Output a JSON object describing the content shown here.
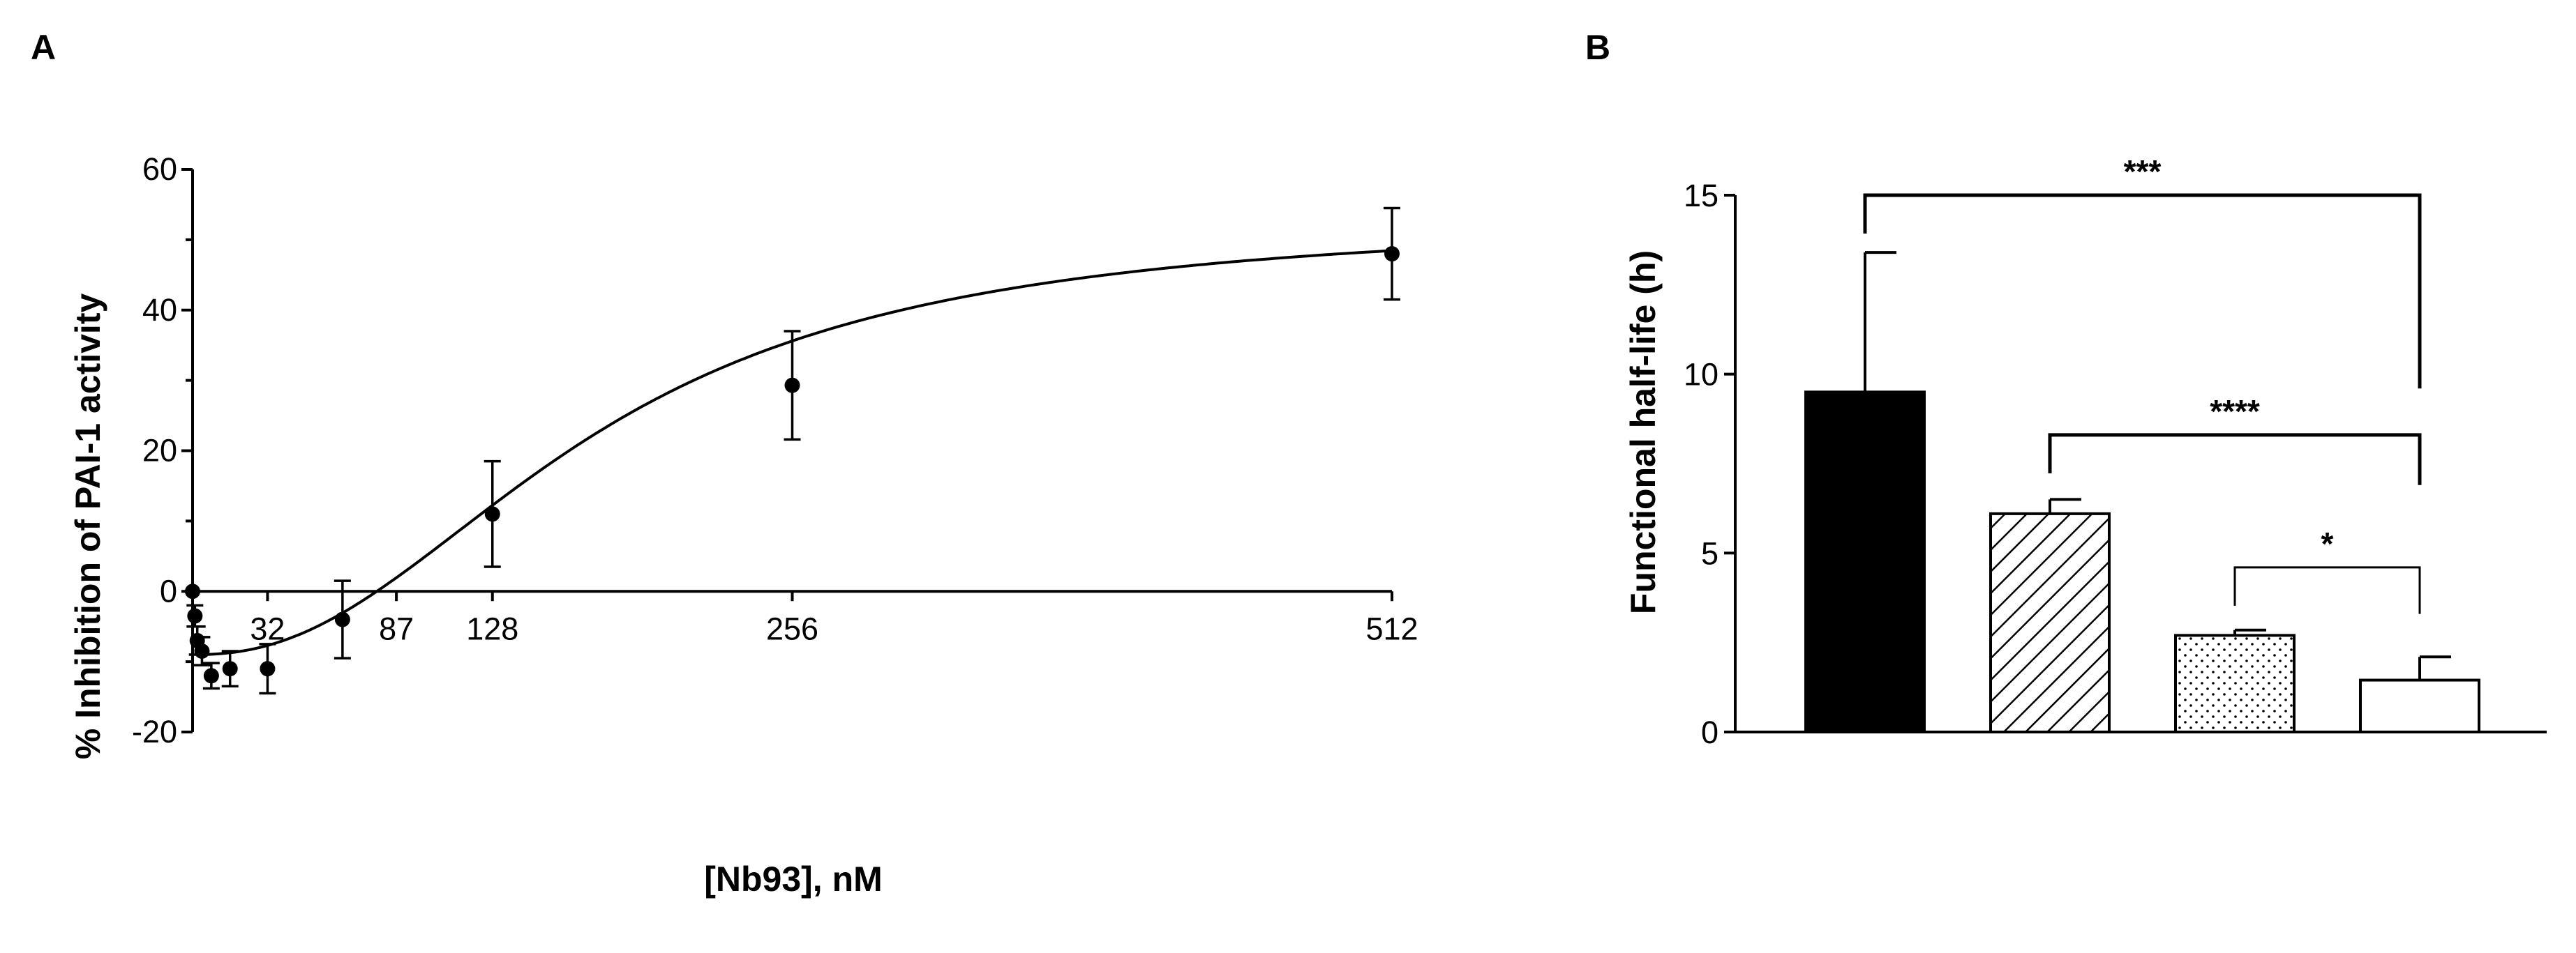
{
  "panels": {
    "a": {
      "letter": "A"
    },
    "b": {
      "letter": "B"
    }
  },
  "chart_data": [
    {
      "type": "scatter",
      "xlabel": "[Nb93], nM",
      "ylabel": "% Inhibition of PAI-1 activity",
      "xlim": [
        0,
        512
      ],
      "ylim": [
        -20,
        60
      ],
      "yticks": [
        -20,
        0,
        20,
        40,
        60
      ],
      "xticks": [
        32,
        87,
        128,
        256,
        512
      ],
      "grid": false,
      "legend": "none",
      "points": [
        {
          "x": 0,
          "y": 0,
          "err": 0
        },
        {
          "x": 1,
          "y": -3.5,
          "err": 1.5
        },
        {
          "x": 2,
          "y": -7,
          "err": 2.0
        },
        {
          "x": 4,
          "y": -8.5,
          "err": 2.0
        },
        {
          "x": 8,
          "y": -12,
          "err": 1.8
        },
        {
          "x": 16,
          "y": -11,
          "err": 2.5
        },
        {
          "x": 32,
          "y": -11,
          "err": 3.5
        },
        {
          "x": 64,
          "y": -4,
          "err": 5.5
        },
        {
          "x": 128,
          "y": 11,
          "err": 7.5
        },
        {
          "x": 256,
          "y": 29.3,
          "err": 7.7
        },
        {
          "x": 512,
          "y": 48,
          "err": 6.5
        }
      ],
      "fit": {
        "model": "sigmoid",
        "bottom": -9,
        "top": 53,
        "ec50": 170,
        "hill": 2.3
      },
      "colors": {
        "marker": "#000000",
        "line": "#000000"
      }
    },
    {
      "type": "bar",
      "ylabel": "Functional half-life (h)",
      "ylim": [
        0,
        15
      ],
      "yticks": [
        0,
        5,
        10,
        15
      ],
      "grid": false,
      "legend": "none",
      "values": [
        9.5,
        6.1,
        2.7,
        1.45
      ],
      "errors": [
        3.9,
        0.4,
        0.15,
        0.65
      ],
      "fills": [
        "solid",
        "diagonal-hatch",
        "dotted",
        "white"
      ],
      "significance": [
        {
          "from": 0,
          "to": 3,
          "label": "***",
          "level": 15
        },
        {
          "from": 1,
          "to": 3,
          "label": "****",
          "level": 8.3
        },
        {
          "from": 2,
          "to": 3,
          "label": "*",
          "level": 4.6
        }
      ],
      "colors": {
        "bar_edge": "#000000",
        "solid_fill": "#000000"
      }
    }
  ]
}
